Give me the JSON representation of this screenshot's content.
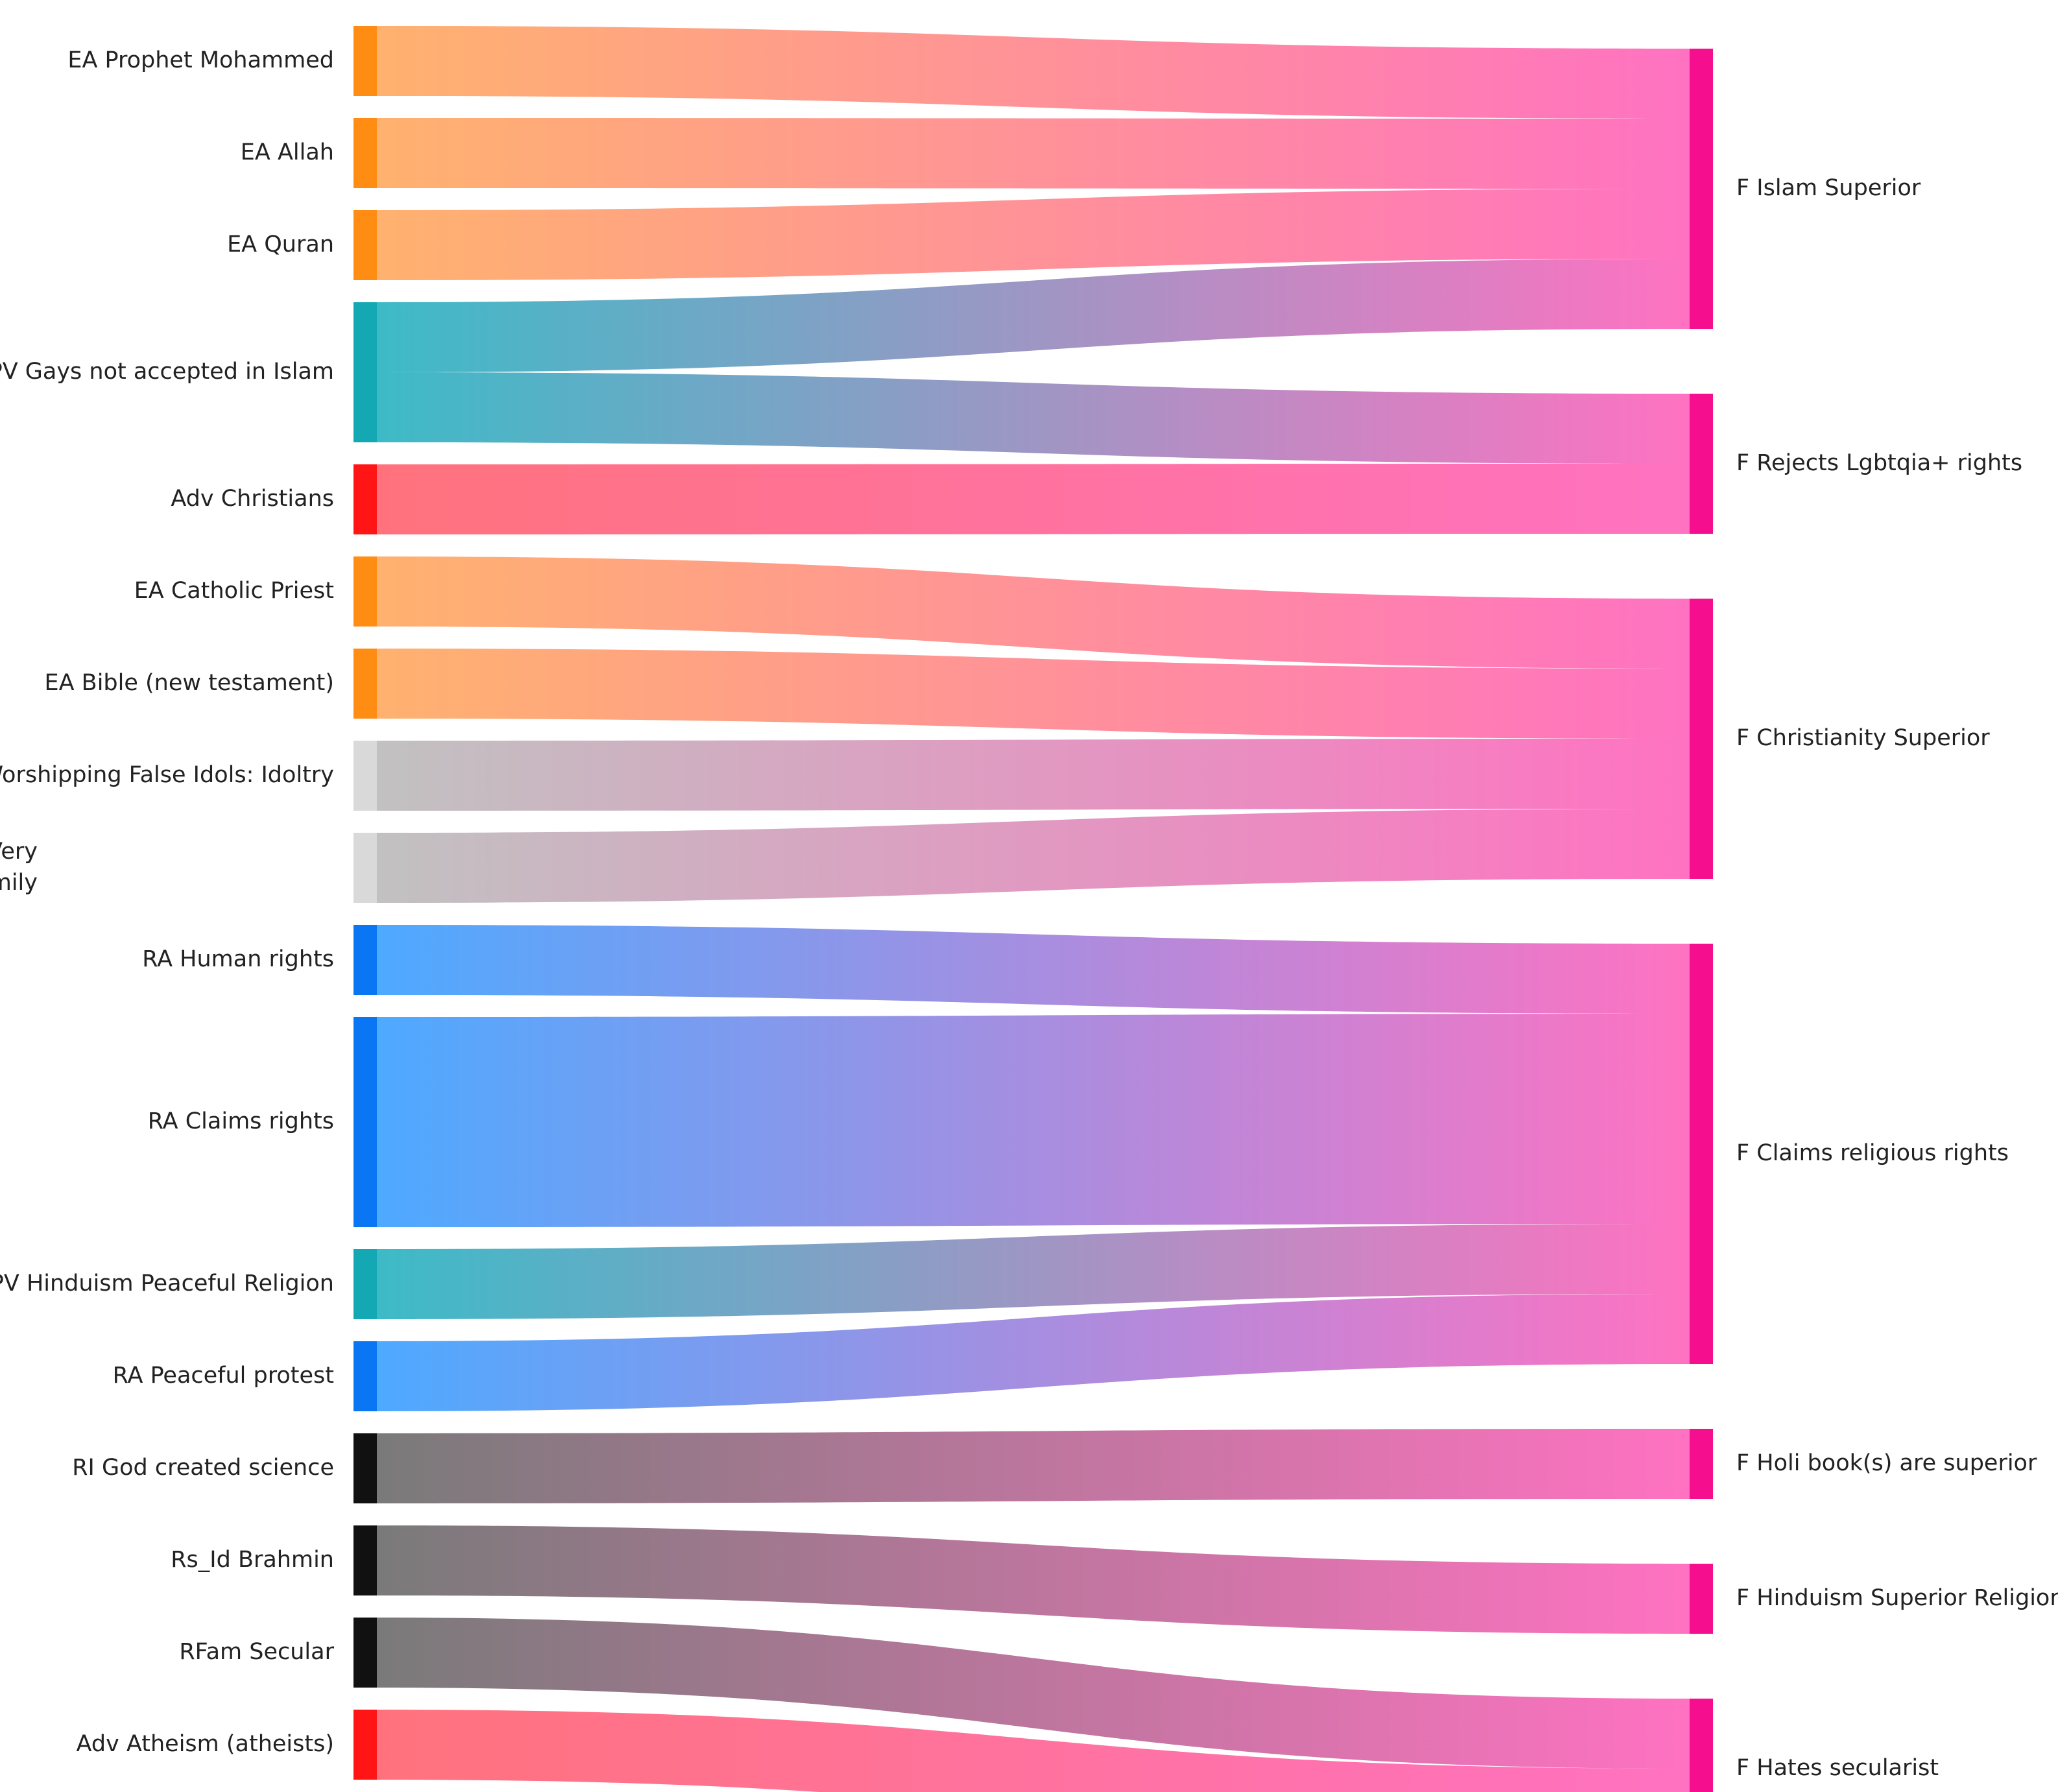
{
  "title": "",
  "colors": {
    "sink": "#f50f8f",
    "sink_light": "#ff6fc0",
    "orange": "#ff8c13",
    "orange_light": "#ffb06c",
    "teal": "#13a8b4",
    "teal_light": "#39b9c6",
    "red": "#ff1515",
    "red_light": "#ff6f7a",
    "gray": "#d9d9d9",
    "gray_light": "#c0c0c0",
    "blue": "#0b76f4",
    "blue_light": "#4aa8ff",
    "black": "#111111",
    "black_light": "#777777"
  },
  "sources": [
    {
      "id": "s1",
      "label": "EA Prophet Mohammed",
      "color": "orange"
    },
    {
      "id": "s2",
      "label": "EA Allah",
      "color": "orange"
    },
    {
      "id": "s3",
      "label": "EA Quran",
      "color": "orange"
    },
    {
      "id": "s4",
      "label": "PV Gays not accepted in Islam",
      "color": "teal"
    },
    {
      "id": "s5",
      "label": "Adv Christians",
      "color": "red"
    },
    {
      "id": "s6",
      "label": "EA Catholic Priest",
      "color": "orange"
    },
    {
      "id": "s7",
      "label": "EA Bible (new testament)",
      "color": "orange"
    },
    {
      "id": "s8",
      "label": "Adv Worshipping False Idols: Idoltry",
      "color": "gray"
    },
    {
      "id": "s9",
      "label": "RI Family very religious: Very Religious Family",
      "color": "gray"
    },
    {
      "id": "s10",
      "label": "RA Human rights",
      "color": "blue"
    },
    {
      "id": "s11",
      "label": "RA Claims rights",
      "color": "blue"
    },
    {
      "id": "s12",
      "label": "PV Hinduism Peaceful Religion",
      "color": "teal"
    },
    {
      "id": "s13",
      "label": "RA Peaceful protest",
      "color": "blue"
    },
    {
      "id": "s14",
      "label": "RI God created science",
      "color": "black"
    },
    {
      "id": "s15",
      "label": "Rs_Id Brahmin",
      "color": "black"
    },
    {
      "id": "s16",
      "label": "RFam Secular",
      "color": "black"
    },
    {
      "id": "s17",
      "label": "Adv Atheism (atheists)",
      "color": "red"
    }
  ],
  "targets": [
    {
      "id": "t1",
      "label": "F Islam Superior"
    },
    {
      "id": "t2",
      "label": "F Rejects Lgbtqia+ rights"
    },
    {
      "id": "t3",
      "label": "F Christianity Superior"
    },
    {
      "id": "t4",
      "label": "F Claims religious rights"
    },
    {
      "id": "t5",
      "label": "F Holi book(s) are superior"
    },
    {
      "id": "t6",
      "label": "F Hinduism Superior Religion"
    },
    {
      "id": "t7",
      "label": "F Hates secularist"
    }
  ],
  "links": [
    {
      "source": "s1",
      "target": "t1",
      "value": 1
    },
    {
      "source": "s2",
      "target": "t1",
      "value": 1
    },
    {
      "source": "s3",
      "target": "t1",
      "value": 1
    },
    {
      "source": "s4",
      "target": "t1",
      "value": 1
    },
    {
      "source": "s4",
      "target": "t2",
      "value": 1
    },
    {
      "source": "s5",
      "target": "t2",
      "value": 1
    },
    {
      "source": "s6",
      "target": "t3",
      "value": 1
    },
    {
      "source": "s7",
      "target": "t3",
      "value": 1
    },
    {
      "source": "s8",
      "target": "t3",
      "value": 1
    },
    {
      "source": "s9",
      "target": "t3",
      "value": 1
    },
    {
      "source": "s10",
      "target": "t4",
      "value": 1
    },
    {
      "source": "s11",
      "target": "t4",
      "value": 3
    },
    {
      "source": "s12",
      "target": "t4",
      "value": 1
    },
    {
      "source": "s13",
      "target": "t4",
      "value": 1
    },
    {
      "source": "s14",
      "target": "t5",
      "value": 1
    },
    {
      "source": "s15",
      "target": "t6",
      "value": 1
    },
    {
      "source": "s16",
      "target": "t7",
      "value": 1
    },
    {
      "source": "s17",
      "target": "t7",
      "value": 1
    }
  ]
}
